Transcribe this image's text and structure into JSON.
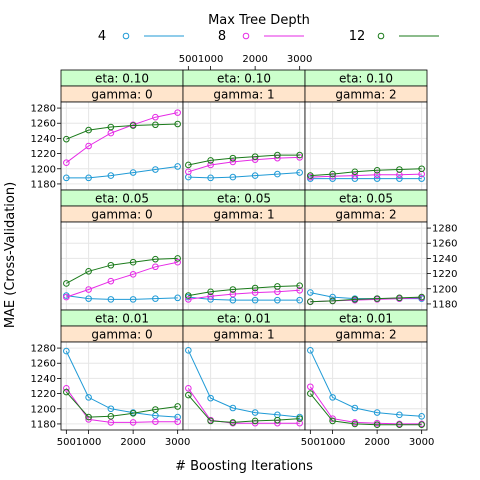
{
  "chart_data": {
    "type": "line",
    "ylabel": "MAE (Cross-Validation)",
    "xlabel": "# Boosting Iterations",
    "legend": {
      "title": "Max Tree Depth",
      "placement": "top",
      "entries": [
        {
          "label": "4",
          "color": "#1f9ad6"
        },
        {
          "label": "8",
          "color": "#e62ae6"
        },
        {
          "label": "12",
          "color": "#1a7a1a"
        }
      ]
    },
    "x": [
      500,
      1000,
      1500,
      2000,
      2500,
      3000
    ],
    "xticks": [
      {
        "value": 500,
        "label": "500"
      },
      {
        "value": 1000,
        "label": "1000"
      },
      {
        "value": 2000,
        "label": "2000"
      },
      {
        "value": 3000,
        "label": "3000"
      }
    ],
    "yticks": [
      1180,
      1200,
      1220,
      1240,
      1260,
      1280
    ],
    "xlim": [
      380,
      3120
    ],
    "ylim": [
      1172,
      1288
    ],
    "panels": [
      {
        "eta": "eta: 0.10",
        "gamma": "gamma: 0",
        "row": 0,
        "col": 0,
        "series": [
          {
            "name": "4",
            "values": [
              1188,
              1188,
              1191,
              1195,
              1199,
              1203
            ]
          },
          {
            "name": "8",
            "values": [
              1208,
              1230,
              1247,
              1258,
              1268,
              1274
            ]
          },
          {
            "name": "12",
            "values": [
              1239,
              1251,
              1255,
              1257,
              1258,
              1259
            ]
          }
        ]
      },
      {
        "eta": "eta: 0.10",
        "gamma": "gamma: 1",
        "row": 0,
        "col": 1,
        "series": [
          {
            "name": "4",
            "values": [
              1189,
              1188,
              1189,
              1191,
              1193,
              1195
            ]
          },
          {
            "name": "8",
            "values": [
              1196,
              1205,
              1209,
              1212,
              1214,
              1215
            ]
          },
          {
            "name": "12",
            "values": [
              1205,
              1211,
              1214,
              1216,
              1218,
              1218
            ]
          }
        ]
      },
      {
        "eta": "eta: 0.10",
        "gamma": "gamma: 2",
        "row": 0,
        "col": 2,
        "series": [
          {
            "name": "4",
            "values": [
              1187,
              1187,
              1187,
              1187,
              1187,
              1187
            ]
          },
          {
            "name": "8",
            "values": [
              1189,
              1190,
              1191,
              1192,
              1192,
              1193
            ]
          },
          {
            "name": "12",
            "values": [
              1191,
              1193,
              1196,
              1198,
              1199,
              1200
            ]
          }
        ]
      },
      {
        "eta": "eta: 0.05",
        "gamma": "gamma: 0",
        "row": 1,
        "col": 0,
        "series": [
          {
            "name": "4",
            "values": [
              1191,
              1187,
              1186,
              1186,
              1187,
              1188
            ]
          },
          {
            "name": "8",
            "values": [
              1189,
              1199,
              1210,
              1219,
              1229,
              1235
            ]
          },
          {
            "name": "12",
            "values": [
              1207,
              1223,
              1231,
              1235,
              1239,
              1240
            ]
          }
        ]
      },
      {
        "eta": "eta: 0.05",
        "gamma": "gamma: 1",
        "row": 1,
        "col": 1,
        "series": [
          {
            "name": "4",
            "values": [
              1189,
              1186,
              1185,
              1185,
              1185,
              1185
            ]
          },
          {
            "name": "8",
            "values": [
              1186,
              1190,
              1193,
              1195,
              1196,
              1198
            ]
          },
          {
            "name": "12",
            "values": [
              1191,
              1196,
              1199,
              1201,
              1203,
              1204
            ]
          }
        ]
      },
      {
        "eta": "eta: 0.05",
        "gamma": "gamma: 2",
        "row": 1,
        "col": 2,
        "series": [
          {
            "name": "4",
            "values": [
              1195,
              1189,
              1187,
              1187,
              1187,
              1187
            ]
          },
          {
            "name": "8",
            "values": [
              1183,
              1184,
              1185,
              1186,
              1187,
              1188
            ]
          },
          {
            "name": "12",
            "values": [
              1183,
              1184,
              1186,
              1187,
              1188,
              1189
            ]
          }
        ]
      },
      {
        "eta": "eta: 0.01",
        "gamma": "gamma: 0",
        "row": 2,
        "col": 0,
        "series": [
          {
            "name": "4",
            "values": [
              1276,
              1215,
              1200,
              1195,
              1191,
              1189
            ]
          },
          {
            "name": "8",
            "values": [
              1227,
              1186,
              1182,
              1182,
              1183,
              1183
            ]
          },
          {
            "name": "12",
            "values": [
              1222,
              1189,
              1190,
              1194,
              1199,
              1203
            ]
          }
        ]
      },
      {
        "eta": "eta: 0.01",
        "gamma": "gamma: 1",
        "row": 2,
        "col": 1,
        "series": [
          {
            "name": "4",
            "values": [
              1277,
              1214,
              1201,
              1195,
              1192,
              1189
            ]
          },
          {
            "name": "8",
            "values": [
              1227,
              1185,
              1181,
              1181,
              1181,
              1181
            ]
          },
          {
            "name": "12",
            "values": [
              1218,
              1184,
              1182,
              1184,
              1185,
              1187
            ]
          }
        ]
      },
      {
        "eta": "eta: 0.01",
        "gamma": "gamma: 2",
        "row": 2,
        "col": 2,
        "series": [
          {
            "name": "4",
            "values": [
              1277,
              1215,
              1201,
              1195,
              1192,
              1190
            ]
          },
          {
            "name": "8",
            "values": [
              1229,
              1187,
              1182,
              1181,
              1180,
              1180
            ]
          },
          {
            "name": "12",
            "values": [
              1220,
              1184,
              1180,
              1179,
              1179,
              1179
            ]
          }
        ]
      }
    ]
  }
}
